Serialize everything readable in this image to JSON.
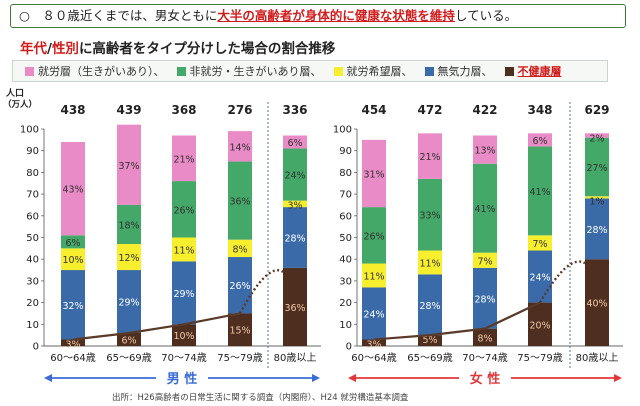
{
  "headline": {
    "prefix": "○　８０歳近くまでは、男女ともに",
    "highlight": "大半の高齢者が身体的に健康な状態を維持",
    "suffix": "している。"
  },
  "subtitle": {
    "part1": "年代",
    "slash": "/",
    "part2": "性別",
    "rest": "に高齢者をタイプ分けした場合の割合推移"
  },
  "y_axis_unit_line1": "人口",
  "y_axis_unit_line2": "（万人）",
  "gender_labels": {
    "male": "男 性",
    "female": "女 性"
  },
  "source_note": "出所：H26高齢者の日常生活に関する調査（内閣府）、H24 就労構造基本調査",
  "colors": {
    "employed": "#e88bc6",
    "non_employed_purpose": "#43a868",
    "job_seeking": "#f7ee2e",
    "lethargic": "#3a6aa7",
    "unhealthy": "#4e2e1e",
    "male_arrow": "#3b6bd6",
    "female_arrow": "#e2373a"
  },
  "chart_data": {
    "type": "bar",
    "stacked": true,
    "ylim": [
      0,
      100
    ],
    "yticks": [
      0,
      10,
      20,
      30,
      40,
      50,
      60,
      70,
      80,
      90,
      100
    ],
    "legend": [
      {
        "key": "employed",
        "label": "就労層（生きがいあり）、"
      },
      {
        "key": "non_employed_purpose",
        "label": "非就労・生きがいあり層、"
      },
      {
        "key": "job_seeking",
        "label": "就労希望層、"
      },
      {
        "key": "lethargic",
        "label": "無気力層、"
      },
      {
        "key": "unhealthy",
        "label": "不健康層",
        "emphasis": true
      }
    ],
    "groups": [
      {
        "gender": "male",
        "categories": [
          "60～64歳",
          "65～69歳",
          "70～74歳",
          "75～79歳",
          "80歳以上"
        ],
        "population": [
          "438",
          "439",
          "368",
          "276",
          "336"
        ],
        "series": [
          {
            "key": "unhealthy",
            "values": [
              3,
              6,
              10,
              15,
              36
            ],
            "labels": [
              "3%",
              "6%",
              "10%",
              "15%",
              "36%"
            ]
          },
          {
            "key": "lethargic",
            "values": [
              32,
              29,
              29,
              26,
              28
            ],
            "labels": [
              "32%",
              "29%",
              "29%",
              "26%",
              "28%"
            ]
          },
          {
            "key": "job_seeking",
            "values": [
              10,
              12,
              11,
              8,
              3
            ],
            "labels": [
              "10%",
              "12%",
              "11%",
              "8%",
              "3%"
            ]
          },
          {
            "key": "non_employed_purpose",
            "values": [
              6,
              18,
              26,
              36,
              24
            ],
            "labels": [
              "6%",
              "18%",
              "26%",
              "36%",
              "24%"
            ]
          },
          {
            "key": "employed",
            "values": [
              43,
              37,
              21,
              14,
              6
            ],
            "labels": [
              "43%",
              "37%",
              "21%",
              "14%",
              "6%"
            ]
          }
        ]
      },
      {
        "gender": "female",
        "categories": [
          "60～64歳",
          "65～69歳",
          "70～74歳",
          "75～79歳",
          "80歳以上"
        ],
        "population": [
          "454",
          "472",
          "422",
          "348",
          "629"
        ],
        "series": [
          {
            "key": "unhealthy",
            "values": [
              3,
              5,
              8,
              20,
              40
            ],
            "labels": [
              "3%",
              "5%",
              "8%",
              "20%",
              "40%"
            ]
          },
          {
            "key": "lethargic",
            "values": [
              24,
              28,
              28,
              24,
              28
            ],
            "labels": [
              "24%",
              "28%",
              "28%",
              "24%",
              "28%"
            ]
          },
          {
            "key": "job_seeking",
            "values": [
              11,
              11,
              7,
              7,
              1
            ],
            "labels": [
              "11%",
              "11%",
              "7%",
              "7%",
              "1%"
            ]
          },
          {
            "key": "non_employed_purpose",
            "values": [
              26,
              33,
              41,
              41,
              27
            ],
            "labels": [
              "26%",
              "33%",
              "41%",
              "41%",
              "27%"
            ]
          },
          {
            "key": "employed",
            "values": [
              31,
              21,
              13,
              6,
              2
            ],
            "labels": [
              "31%",
              "21%",
              "13%",
              "6%",
              "2%"
            ]
          }
        ]
      }
    ]
  }
}
